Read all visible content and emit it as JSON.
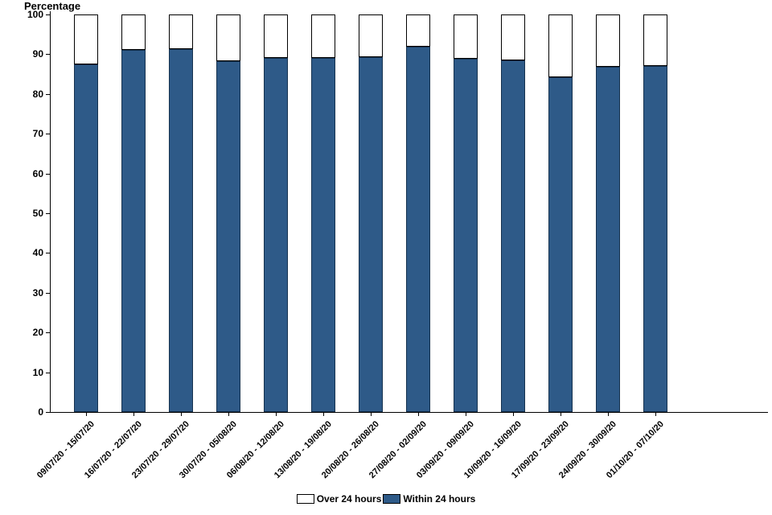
{
  "chart_data": {
    "type": "bar",
    "stacked": true,
    "title": "",
    "xlabel": "",
    "ylabel": "Percentage",
    "ylim": [
      0,
      100
    ],
    "yticks": [
      0,
      10,
      20,
      30,
      40,
      50,
      60,
      70,
      80,
      90,
      100
    ],
    "grid": false,
    "legend_position": "bottom",
    "categories": [
      "09/07/20 - 15/07/20",
      "16/07/20 - 22/07/20",
      "23/07/20 - 29/07/20",
      "30/07/20 - 05/08/20",
      "06/08/20 - 12/08/20",
      "13/08/20 - 19/08/20",
      "20/08/20 - 26/08/20",
      "27/08/20 - 02/09/20",
      "03/09/20 - 09/09/20",
      "10/09/20 - 16/09/20",
      "17/09/20 - 23/09/20",
      "24/09/20 - 30/09/20",
      "01/10/20 - 07/10/20"
    ],
    "series": [
      {
        "name": "Within 24 hours",
        "color": "#2e5a88",
        "values": [
          87.5,
          91.0,
          91.2,
          88.2,
          89.0,
          89.0,
          89.2,
          92.0,
          88.8,
          88.5,
          84.3,
          86.8,
          87.0
        ]
      },
      {
        "name": "Over 24 hours",
        "color": "#ffffff",
        "values": [
          12.5,
          9.0,
          8.8,
          11.8,
          11.0,
          11.0,
          10.8,
          8.0,
          11.2,
          11.5,
          15.7,
          13.2,
          13.0
        ]
      }
    ],
    "legend": [
      {
        "label": "Over 24 hours",
        "color": "#ffffff"
      },
      {
        "label": "Within 24 hours",
        "color": "#2e5a88"
      }
    ]
  },
  "colors": {
    "bar_blue": "#2e5a88",
    "bar_white": "#ffffff",
    "axis": "#000000",
    "background": "#ffffff"
  }
}
